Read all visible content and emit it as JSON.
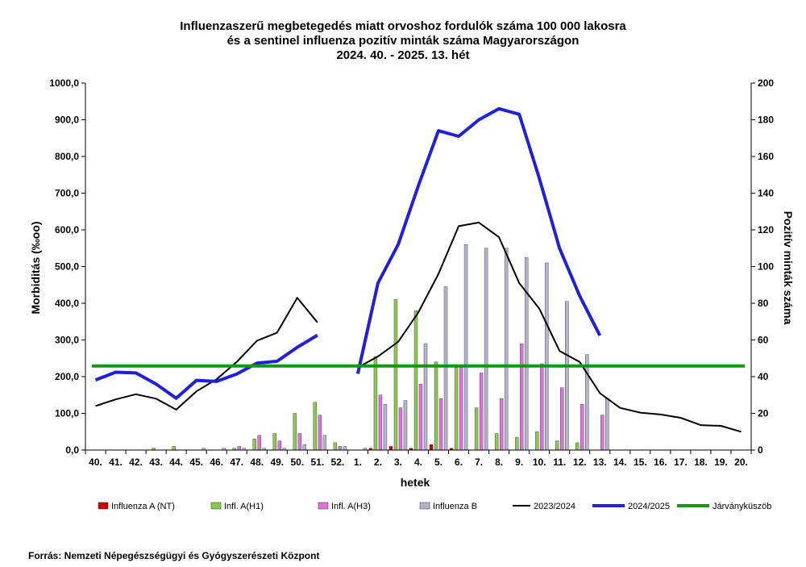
{
  "chart_data": {
    "type": "bar",
    "title_lines": [
      "Influenzaszerű megbetegedés miatt orvoshoz fordulók száma 100 000 lakosra",
      "és a sentinel influenza pozitív minták száma Magyarországon",
      "2024. 40. - 2025. 13. hét"
    ],
    "xlabel": "hetek",
    "ylabel_left": "Morbiditás (‰oo)",
    "ylabel_right": "Pozitív minták száma",
    "ylim_left": [
      0,
      1000
    ],
    "ylim_right": [
      0,
      200
    ],
    "yticks_left": [
      "0,0",
      "100,0",
      "200,0",
      "300,0",
      "400,0",
      "500,0",
      "600,0",
      "700,0",
      "800,0",
      "900,0",
      "1000,0"
    ],
    "yticks_right": [
      "0",
      "20",
      "40",
      "60",
      "80",
      "100",
      "120",
      "140",
      "160",
      "180",
      "200"
    ],
    "categories": [
      "40.",
      "41.",
      "42.",
      "43.",
      "44.",
      "45.",
      "46.",
      "47.",
      "48.",
      "49.",
      "50.",
      "51.",
      "52.",
      "1.",
      "2.",
      "3.",
      "4.",
      "5.",
      "6.",
      "7.",
      "8.",
      "9.",
      "10.",
      "11.",
      "12.",
      "13.",
      "14.",
      "15.",
      "16.",
      "17.",
      "18.",
      "19.",
      "20."
    ],
    "bar_series": [
      {
        "name": "Influenza A (NT)",
        "color": "#cc0000",
        "axis": "right",
        "values": [
          0,
          0,
          0,
          0,
          0,
          0,
          0,
          0,
          0,
          0,
          0,
          0,
          0,
          0,
          1,
          2,
          1,
          3,
          1,
          0,
          0,
          0,
          0,
          0,
          0,
          0,
          null,
          null,
          null,
          null,
          null,
          null,
          null
        ]
      },
      {
        "name": "Infl. A(H1)",
        "color": "#8cc850",
        "axis": "right",
        "values": [
          0,
          0,
          0,
          1,
          2,
          0,
          0,
          1,
          6,
          9,
          20,
          26,
          4,
          0,
          51,
          82,
          76,
          48,
          45,
          23,
          9,
          7,
          10,
          5,
          4,
          0,
          null,
          null,
          null,
          null,
          null,
          null,
          null
        ]
      },
      {
        "name": "Infl. A(H3)",
        "color": "#e070e0",
        "axis": "right",
        "values": [
          0,
          0,
          0,
          0,
          0,
          0,
          0,
          2,
          8,
          5,
          9,
          19,
          2,
          0,
          30,
          23,
          36,
          28,
          45,
          42,
          28,
          58,
          47,
          34,
          25,
          19,
          null,
          null,
          null,
          null,
          null,
          null,
          null
        ]
      },
      {
        "name": "Influenza B",
        "color": "#b4b4cc",
        "axis": "right",
        "values": [
          0,
          0,
          0,
          0,
          0,
          1,
          1,
          1,
          1,
          1,
          3,
          8,
          2,
          1,
          25,
          27,
          58,
          89,
          112,
          110,
          110,
          105,
          102,
          81,
          52,
          28,
          null,
          null,
          null,
          null,
          null,
          null,
          null
        ]
      }
    ],
    "line_series": [
      {
        "name": "2023/2024",
        "color": "#000000",
        "axis": "left",
        "values": [
          120,
          138,
          152,
          140,
          110,
          160,
          193,
          240,
          298,
          320,
          415,
          348,
          null,
          225,
          255,
          295,
          375,
          480,
          610,
          620,
          580,
          455,
          385,
          270,
          240,
          155,
          115,
          102,
          97,
          88,
          68,
          66,
          50
        ]
      },
      {
        "name": "2024/2025",
        "color": "#1f1fdc",
        "axis": "left",
        "values": [
          191,
          212,
          210,
          180,
          141,
          190,
          187,
          207,
          237,
          242,
          280,
          313,
          null,
          208,
          455,
          560,
          720,
          870,
          855,
          900,
          930,
          915,
          740,
          550,
          420,
          312,
          null,
          null,
          null,
          null,
          null,
          null,
          null
        ]
      },
      {
        "name": "Járványküszöb",
        "color": "#119911",
        "axis": "left",
        "values": [
          229,
          229,
          229,
          229,
          229,
          229,
          229,
          229,
          229,
          229,
          229,
          229,
          229,
          229,
          229,
          229,
          229,
          229,
          229,
          229,
          229,
          229,
          229,
          229,
          229,
          229,
          229,
          229,
          229,
          229,
          229,
          229,
          229
        ]
      }
    ],
    "legend_position": "bottom",
    "grid": false
  },
  "footer": {
    "source": "Forrás: Nemzeti Népegészségügyi és Gyógyszerészeti Központ"
  }
}
